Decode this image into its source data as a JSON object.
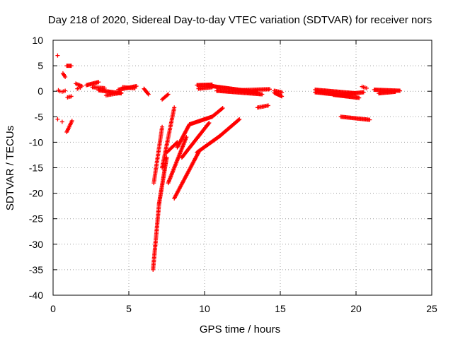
{
  "chart_data": {
    "type": "scatter",
    "title": "Day 218 of 2020, Sidereal Day-to-day VTEC variation (SDTVAR) for receiver nors",
    "xlabel": "GPS time / hours",
    "ylabel": "SDTVAR / TECUs",
    "xlim": [
      0,
      25
    ],
    "ylim": [
      -40,
      10
    ],
    "xticks": [
      0,
      5,
      10,
      15,
      20,
      25
    ],
    "yticks": [
      10,
      5,
      0,
      -5,
      -10,
      -15,
      -20,
      -25,
      -30,
      -35,
      -40
    ],
    "grid": true,
    "marker": "+",
    "color": "#ff0000",
    "segments": [
      {
        "x0": 0.3,
        "y0": 7.0,
        "x1": 0.3,
        "y1": 7.0,
        "n": 1
      },
      {
        "x0": 0.35,
        "y0": 0.2,
        "x1": 0.45,
        "y1": 0.0,
        "n": 2
      },
      {
        "x0": 0.6,
        "y0": -0.1,
        "x1": 0.8,
        "y1": 0.1,
        "n": 3
      },
      {
        "x0": 0.3,
        "y0": -5.5,
        "x1": 0.6,
        "y1": -6.0,
        "n": 2
      },
      {
        "x0": 0.65,
        "y0": 3.5,
        "x1": 0.8,
        "y1": 2.8,
        "n": 4
      },
      {
        "x0": 0.9,
        "y0": 5.0,
        "x1": 1.2,
        "y1": 5.0,
        "n": 6
      },
      {
        "x0": 0.9,
        "y0": -8.0,
        "x1": 1.25,
        "y1": -5.8,
        "n": 10
      },
      {
        "x0": 0.95,
        "y0": -1.2,
        "x1": 1.2,
        "y1": -1.0,
        "n": 4
      },
      {
        "x0": 1.5,
        "y0": 1.5,
        "x1": 1.9,
        "y1": 1.0,
        "n": 6
      },
      {
        "x0": 1.6,
        "y0": 0.5,
        "x1": 1.8,
        "y1": 0.7,
        "n": 3
      },
      {
        "x0": 2.2,
        "y0": 1.2,
        "x1": 3.0,
        "y1": 1.8,
        "n": 14
      },
      {
        "x0": 2.6,
        "y0": 0.8,
        "x1": 3.4,
        "y1": 0.6,
        "n": 12
      },
      {
        "x0": 3.0,
        "y0": 0.2,
        "x1": 4.5,
        "y1": -0.4,
        "n": 26
      },
      {
        "x0": 3.5,
        "y0": -0.8,
        "x1": 4.5,
        "y1": -0.3,
        "n": 14
      },
      {
        "x0": 4.3,
        "y0": 0.3,
        "x1": 5.5,
        "y1": 1.0,
        "n": 20
      },
      {
        "x0": 4.6,
        "y0": 0.8,
        "x1": 5.4,
        "y1": 0.6,
        "n": 12
      },
      {
        "x0": 6.0,
        "y0": 0.5,
        "x1": 6.3,
        "y1": -0.6,
        "n": 8
      },
      {
        "x0": 7.2,
        "y0": -1.6,
        "x1": 7.6,
        "y1": -0.6,
        "n": 8
      },
      {
        "x0": 6.6,
        "y0": -35.0,
        "x1": 7.0,
        "y1": -22.0,
        "n": 50
      },
      {
        "x0": 6.65,
        "y0": -18.0,
        "x1": 7.2,
        "y1": -7.0,
        "n": 40
      },
      {
        "x0": 7.0,
        "y0": -22.0,
        "x1": 7.5,
        "y1": -13.0,
        "n": 40
      },
      {
        "x0": 7.2,
        "y0": -15.0,
        "x1": 8.0,
        "y1": -3.2,
        "n": 45
      },
      {
        "x0": 7.5,
        "y0": -12.0,
        "x1": 8.2,
        "y1": -10.0,
        "n": 14
      },
      {
        "x0": 7.6,
        "y0": -18.0,
        "x1": 8.8,
        "y1": -9.0,
        "n": 40
      },
      {
        "x0": 8.2,
        "y0": -11.0,
        "x1": 9.0,
        "y1": -6.5,
        "n": 25
      },
      {
        "x0": 8.0,
        "y0": -21.0,
        "x1": 9.6,
        "y1": -12.0,
        "n": 45
      },
      {
        "x0": 9.0,
        "y0": -6.5,
        "x1": 10.5,
        "y1": -5.0,
        "n": 30
      },
      {
        "x0": 10.5,
        "y0": -5.0,
        "x1": 11.2,
        "y1": -3.3,
        "n": 14
      },
      {
        "x0": 8.5,
        "y0": -13.0,
        "x1": 10.3,
        "y1": -6.2,
        "n": 45
      },
      {
        "x0": 9.5,
        "y0": -12.0,
        "x1": 11.0,
        "y1": -8.8,
        "n": 35
      },
      {
        "x0": 11.0,
        "y0": -8.8,
        "x1": 12.3,
        "y1": -5.5,
        "n": 30
      },
      {
        "x0": 9.5,
        "y0": 1.2,
        "x1": 10.5,
        "y1": 1.3,
        "n": 18
      },
      {
        "x0": 9.6,
        "y0": 0.5,
        "x1": 10.5,
        "y1": 0.8,
        "n": 14
      },
      {
        "x0": 10.5,
        "y0": 1.0,
        "x1": 13.5,
        "y1": -0.2,
        "n": 55
      },
      {
        "x0": 10.8,
        "y0": 0.1,
        "x1": 13.8,
        "y1": -0.6,
        "n": 50
      },
      {
        "x0": 12.3,
        "y0": 0.2,
        "x1": 14.3,
        "y1": 0.4,
        "n": 30
      },
      {
        "x0": 13.5,
        "y0": -3.2,
        "x1": 14.2,
        "y1": -2.8,
        "n": 10
      },
      {
        "x0": 14.6,
        "y0": -0.3,
        "x1": 15.1,
        "y1": -1.0,
        "n": 10
      },
      {
        "x0": 14.6,
        "y0": 0.1,
        "x1": 15.1,
        "y1": -0.2,
        "n": 8
      },
      {
        "x0": 17.3,
        "y0": -0.2,
        "x1": 19.5,
        "y1": -0.9,
        "n": 40
      },
      {
        "x0": 17.3,
        "y0": 0.3,
        "x1": 20.0,
        "y1": -0.4,
        "n": 45
      },
      {
        "x0": 18.5,
        "y0": -0.7,
        "x1": 20.2,
        "y1": -1.3,
        "n": 30
      },
      {
        "x0": 19.2,
        "y0": -0.6,
        "x1": 20.5,
        "y1": -0.2,
        "n": 22
      },
      {
        "x0": 20.4,
        "y0": 0.9,
        "x1": 20.7,
        "y1": 0.6,
        "n": 4
      },
      {
        "x0": 19.0,
        "y0": -5.0,
        "x1": 20.9,
        "y1": -5.6,
        "n": 30
      },
      {
        "x0": 21.2,
        "y0": 0.3,
        "x1": 22.9,
        "y1": 0.1,
        "n": 30
      },
      {
        "x0": 21.5,
        "y0": -0.4,
        "x1": 22.6,
        "y1": -0.1,
        "n": 20
      }
    ]
  }
}
